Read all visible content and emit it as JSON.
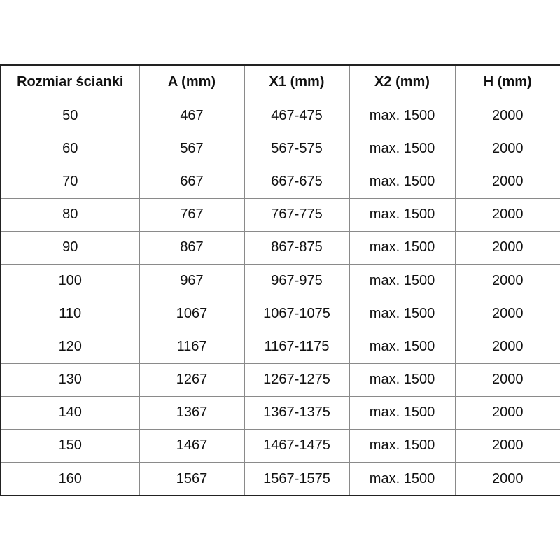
{
  "table": {
    "headers": [
      "Rozmiar ścianki",
      "A (mm)",
      "X1 (mm)",
      "X2 (mm)",
      "H (mm)"
    ],
    "rows": [
      [
        "50",
        "467",
        "467-475",
        "max. 1500",
        "2000"
      ],
      [
        "60",
        "567",
        "567-575",
        "max. 1500",
        "2000"
      ],
      [
        "70",
        "667",
        "667-675",
        "max. 1500",
        "2000"
      ],
      [
        "80",
        "767",
        "767-775",
        "max. 1500",
        "2000"
      ],
      [
        "90",
        "867",
        "867-875",
        "max. 1500",
        "2000"
      ],
      [
        "100",
        "967",
        "967-975",
        "max. 1500",
        "2000"
      ],
      [
        "110",
        "1067",
        "1067-1075",
        "max. 1500",
        "2000"
      ],
      [
        "120",
        "1167",
        "1167-1175",
        "max. 1500",
        "2000"
      ],
      [
        "130",
        "1267",
        "1267-1275",
        "max. 1500",
        "2000"
      ],
      [
        "140",
        "1367",
        "1367-1375",
        "max. 1500",
        "2000"
      ],
      [
        "150",
        "1467",
        "1467-1475",
        "max. 1500",
        "2000"
      ],
      [
        "160",
        "1567",
        "1567-1575",
        "max. 1500",
        "2000"
      ]
    ]
  }
}
